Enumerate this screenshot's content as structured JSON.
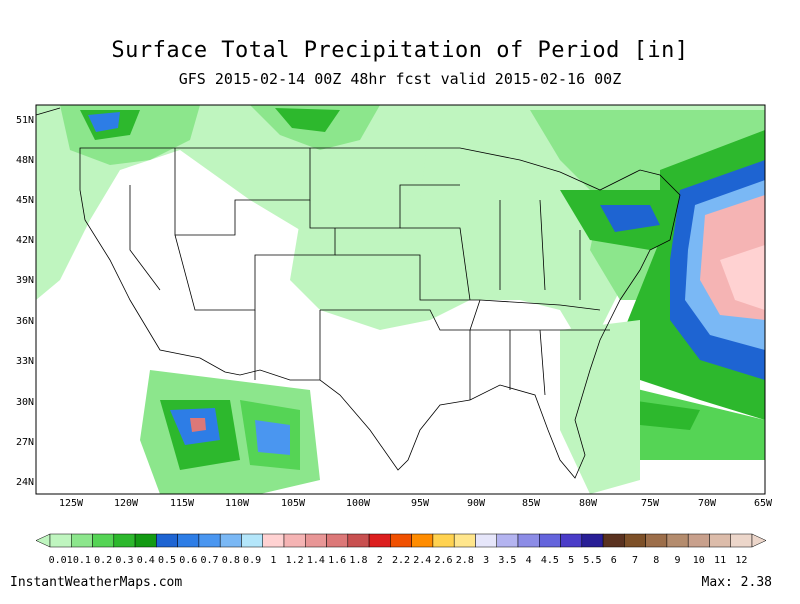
{
  "title": "Surface Total Precipitation of Period [in]",
  "subtitle": "GFS 2015-02-14 00Z 48hr fcst valid 2015-02-16 00Z",
  "lat_labels": [
    "51N",
    "48N",
    "45N",
    "42N",
    "39N",
    "36N",
    "33N",
    "30N",
    "27N",
    "24N"
  ],
  "lon_labels": [
    "125W",
    "120W",
    "115W",
    "110W",
    "105W",
    "100W",
    "95W",
    "90W",
    "85W",
    "80W",
    "75W",
    "70W",
    "65W"
  ],
  "colorbar": {
    "labels": [
      "0.01",
      "0.1",
      "0.2",
      "0.3",
      "0.4",
      "0.5",
      "0.6",
      "0.7",
      "0.8",
      "0.9",
      "1",
      "1.2",
      "1.4",
      "1.6",
      "1.8",
      "2",
      "2.2",
      "2.4",
      "2.6",
      "2.8",
      "3",
      "3.5",
      "4",
      "4.5",
      "5",
      "5.5",
      "6",
      "7",
      "8",
      "9",
      "10",
      "11",
      "12"
    ],
    "colors": [
      "#bff5bf",
      "#8ce68c",
      "#55d455",
      "#2db82d",
      "#139a13",
      "#1e64d2",
      "#2d7de6",
      "#4a96f0",
      "#7ab8f5",
      "#b4e6fa",
      "#ffd2d2",
      "#f5b4b4",
      "#e89696",
      "#dc7878",
      "#c85050",
      "#dc1e1e",
      "#f05000",
      "#ff8c00",
      "#ffd250",
      "#ffe68c",
      "#e6e6fa",
      "#b4b4f0",
      "#8c8ce6",
      "#6464dc",
      "#4a3cc8",
      "#281e96",
      "#5a3220",
      "#7d5028",
      "#9c6e4a",
      "#b48c6e",
      "#c8a08c",
      "#dcbcaa",
      "#ecd6ca"
    ]
  },
  "credit": "InstantWeatherMaps.com",
  "max_label": "Max:  2.38"
}
